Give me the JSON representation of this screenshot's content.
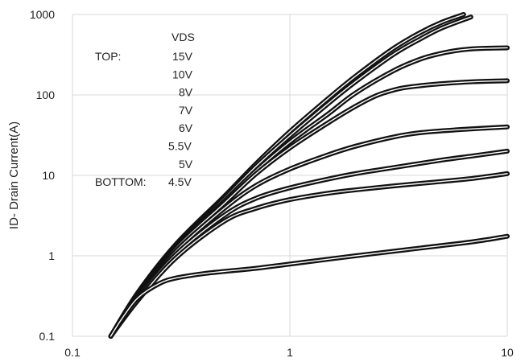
{
  "chart_data": {
    "type": "line",
    "title": "",
    "xlabel": "",
    "ylabel": "ID- Drain Current(A)",
    "x_scale": "log",
    "y_scale": "log",
    "xlim": [
      0.1,
      10
    ],
    "ylim": [
      0.1,
      1000
    ],
    "x_ticks": [
      "0.1",
      "1",
      "10"
    ],
    "y_ticks": [
      "0.1",
      "1",
      "10",
      "100",
      "1000"
    ],
    "grid": true,
    "legend": {
      "placement": "top-left",
      "header": "VDS",
      "top_label": "TOP:",
      "bottom_label": "BOTTOM:",
      "entries": [
        "15V",
        "10V",
        "8V",
        "7V",
        "6V",
        "5.5V",
        "5V",
        "4.5V"
      ]
    },
    "series": [
      {
        "name": "15V",
        "x": [
          0.15,
          0.2,
          0.3,
          0.5,
          0.7,
          1,
          1.5,
          2,
          3,
          4,
          5,
          6.3
        ],
        "y": [
          0.1,
          0.35,
          1.4,
          5.5,
          14,
          35,
          90,
          170,
          380,
          600,
          800,
          1000
        ]
      },
      {
        "name": "10V",
        "x": [
          0.15,
          0.2,
          0.3,
          0.5,
          0.7,
          1,
          1.5,
          2,
          3,
          4,
          5,
          6.8
        ],
        "y": [
          0.1,
          0.34,
          1.35,
          5.2,
          13,
          31,
          78,
          145,
          320,
          500,
          680,
          930
        ]
      },
      {
        "name": "8V",
        "x": [
          0.15,
          0.2,
          0.3,
          0.5,
          0.7,
          1,
          1.5,
          2,
          3,
          4,
          5,
          6,
          7,
          8,
          10
        ],
        "y": [
          0.1,
          0.33,
          1.3,
          4.8,
          11.5,
          26,
          58,
          105,
          200,
          280,
          330,
          360,
          375,
          380,
          385
        ]
      },
      {
        "name": "7V",
        "x": [
          0.15,
          0.2,
          0.3,
          0.5,
          0.7,
          1,
          1.5,
          2,
          2.5,
          3,
          3.5,
          5,
          7,
          10
        ],
        "y": [
          0.1,
          0.32,
          1.25,
          4.5,
          10.5,
          22,
          45,
          72,
          98,
          115,
          125,
          138,
          146,
          150
        ]
      },
      {
        "name": "6V",
        "x": [
          0.15,
          0.2,
          0.3,
          0.5,
          0.7,
          1,
          1.5,
          2,
          3,
          4,
          6,
          10
        ],
        "y": [
          0.1,
          0.31,
          1.15,
          3.9,
          7.5,
          12,
          18,
          23,
          30,
          34,
          37,
          40
        ]
      },
      {
        "name": "5.5V",
        "x": [
          0.15,
          0.2,
          0.3,
          0.5,
          0.7,
          1,
          1.5,
          2,
          3,
          5,
          7,
          10
        ],
        "y": [
          0.1,
          0.3,
          1.05,
          3.2,
          5.2,
          7,
          9,
          10.5,
          12.5,
          15.5,
          17.5,
          20
        ]
      },
      {
        "name": "5V",
        "x": [
          0.15,
          0.2,
          0.3,
          0.5,
          0.7,
          1,
          1.5,
          2,
          3,
          5,
          7,
          10
        ],
        "y": [
          0.1,
          0.28,
          0.95,
          2.7,
          3.9,
          5,
          6,
          6.6,
          7.4,
          8.4,
          9.2,
          10.5
        ]
      },
      {
        "name": "4.5V",
        "x": [
          0.15,
          0.17,
          0.2,
          0.25,
          0.3,
          0.4,
          0.5,
          0.7,
          1,
          2,
          4,
          7,
          10
        ],
        "y": [
          0.1,
          0.17,
          0.3,
          0.45,
          0.53,
          0.6,
          0.64,
          0.7,
          0.79,
          1.0,
          1.25,
          1.5,
          1.75
        ]
      }
    ]
  }
}
